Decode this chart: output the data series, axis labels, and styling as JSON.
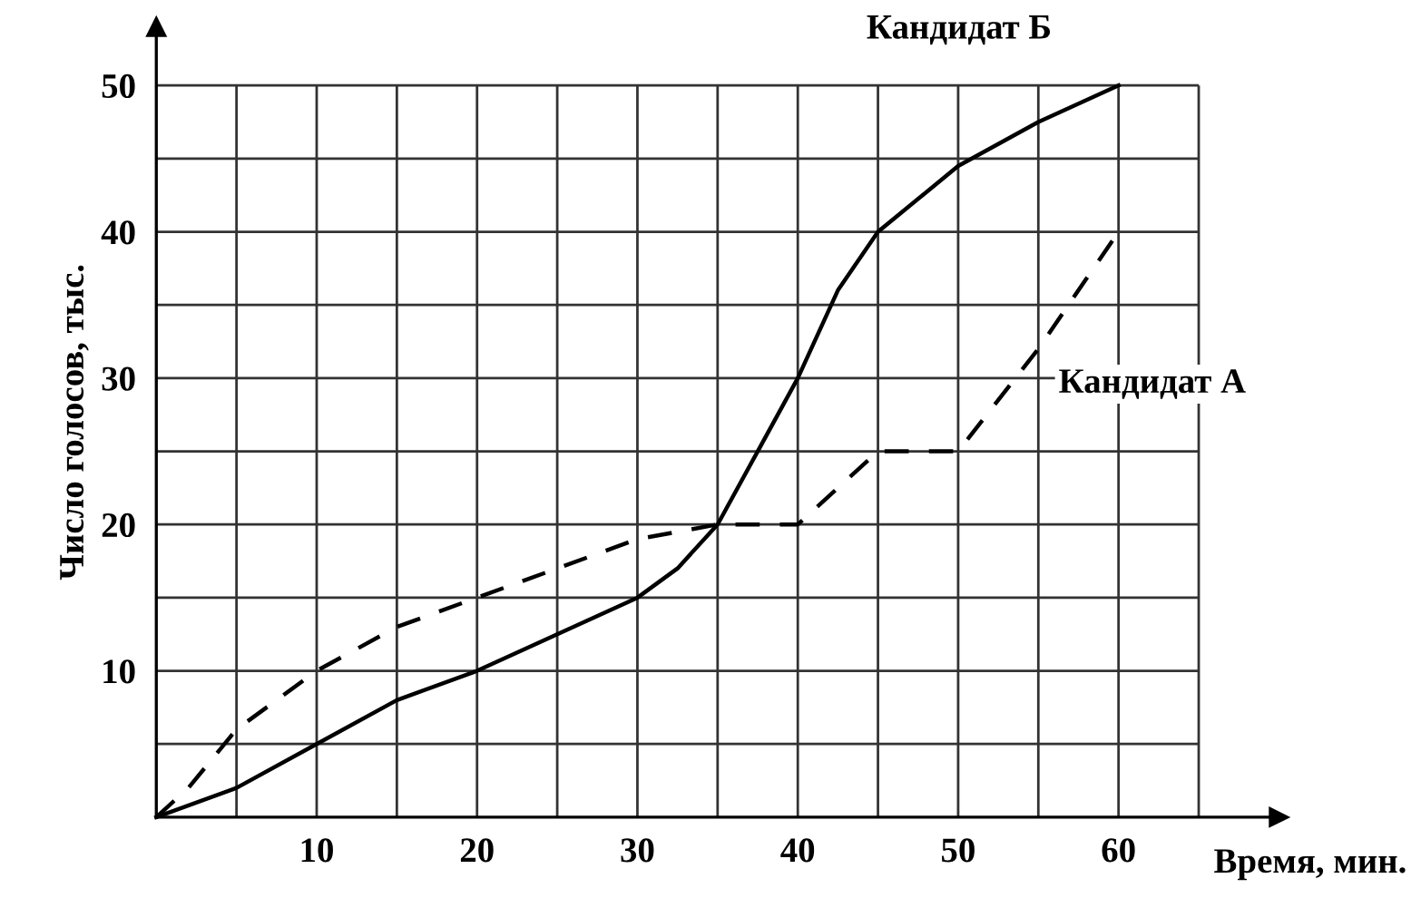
{
  "chart_data": {
    "type": "line",
    "xlabel": "Время, мин.",
    "ylabel": "Число голосов, тыс.",
    "xlim": [
      0,
      70
    ],
    "ylim": [
      0,
      54
    ],
    "xticks": [
      {
        "value": 5,
        "label": null
      },
      10,
      {
        "value": 15,
        "label": null
      },
      20,
      {
        "value": 25,
        "label": null
      },
      30,
      {
        "value": 35,
        "label": null
      },
      40,
      {
        "value": 45,
        "label": null
      },
      50,
      {
        "value": 55,
        "label": null
      },
      60,
      {
        "value": 65,
        "label": null
      }
    ],
    "yticks": [
      {
        "value": 5,
        "label": null
      },
      10,
      {
        "value": 15,
        "label": null
      },
      20,
      {
        "value": 25,
        "label": null
      },
      30,
      {
        "value": 35,
        "label": null
      },
      40,
      {
        "value": 45,
        "label": null
      },
      50
    ],
    "grid": true,
    "series": [
      {
        "name": "Кандидат Б",
        "color": "#000000",
        "line_style": "solid",
        "x": [
          0,
          5,
          10,
          15,
          20,
          25,
          30,
          32.5,
          35,
          37.5,
          40,
          42.5,
          45,
          50,
          55,
          60
        ],
        "values": [
          0,
          2,
          5,
          8,
          10,
          12.5,
          15,
          17,
          20,
          25,
          30,
          36,
          40,
          44.5,
          47.5,
          50
        ]
      },
      {
        "name": "Кандидат А",
        "color": "#000000",
        "line_style": "dashed",
        "x": [
          0,
          2,
          5,
          10,
          15,
          20,
          25,
          30,
          35,
          40,
          45,
          50,
          55,
          60
        ],
        "values": [
          0,
          2,
          6,
          10,
          13,
          15,
          17,
          19,
          20,
          20,
          25,
          25,
          32,
          40
        ]
      }
    ]
  }
}
